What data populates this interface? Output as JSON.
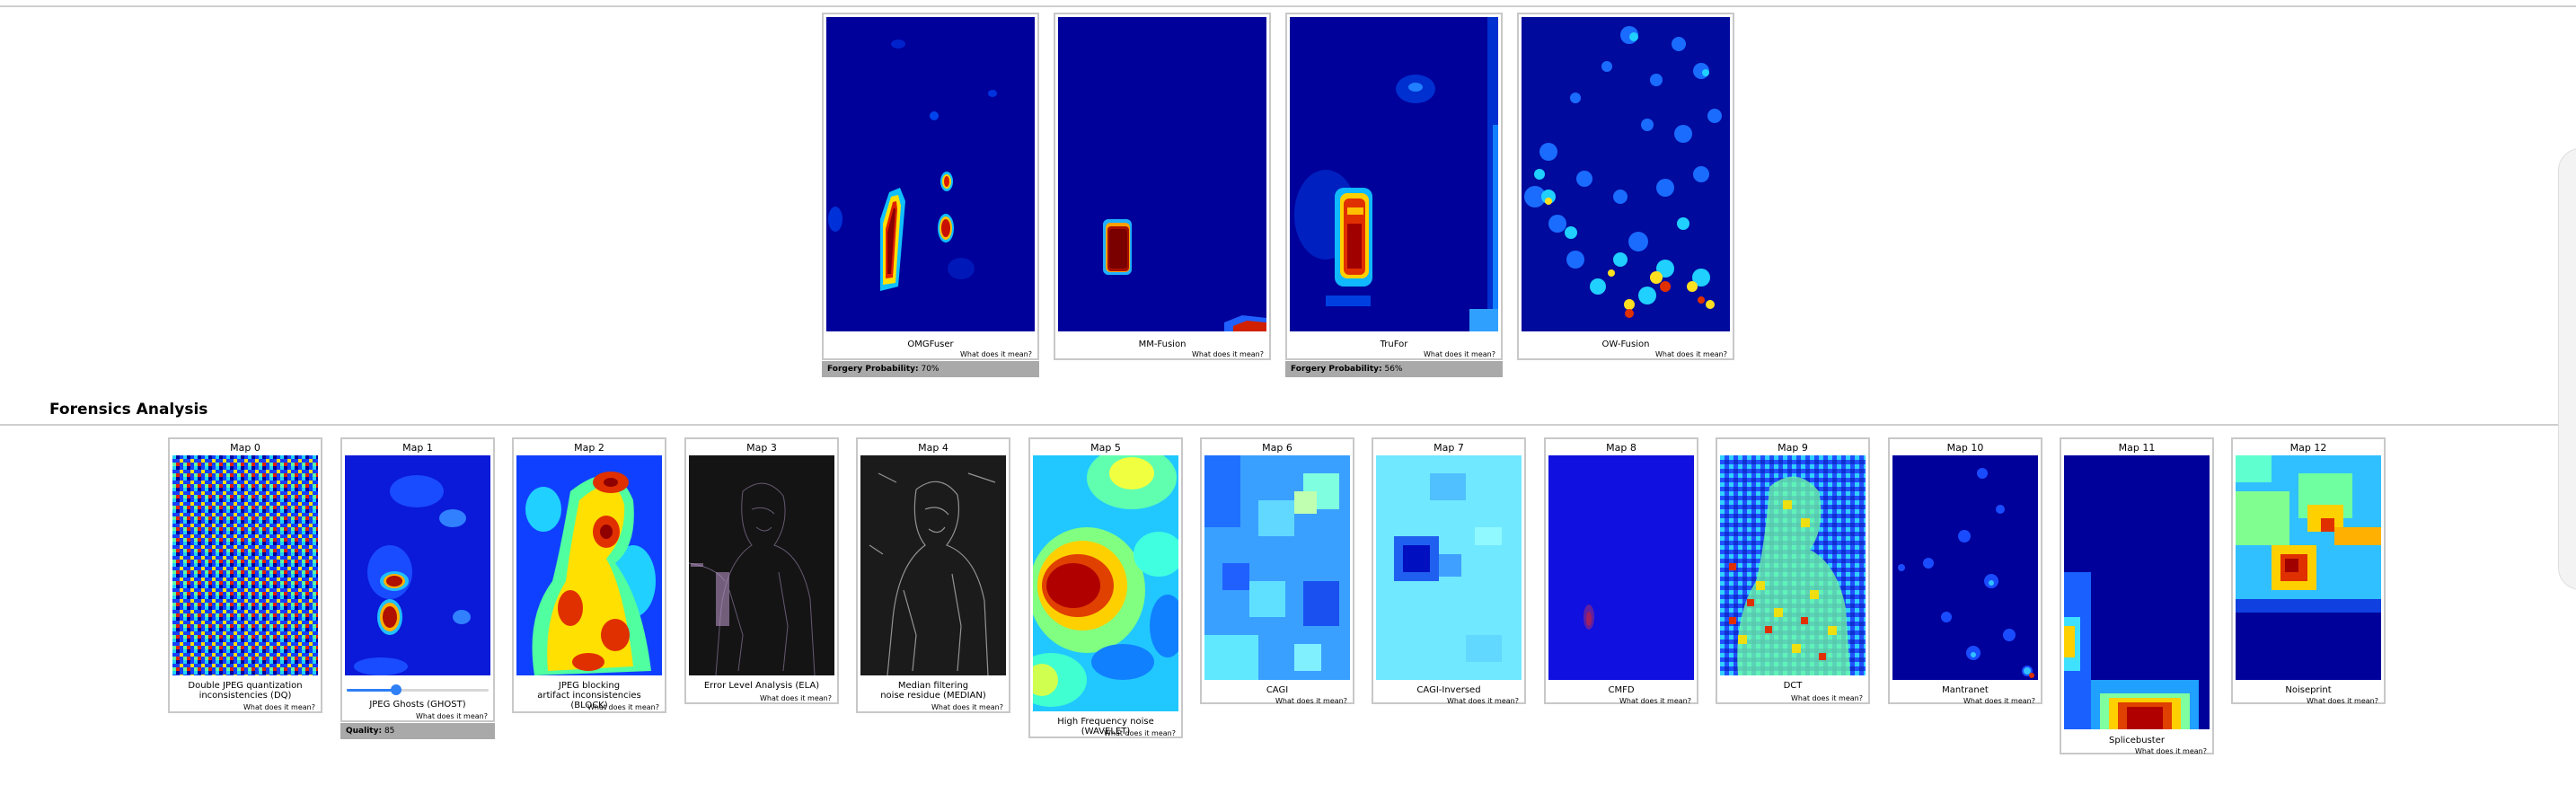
{
  "fusion": [
    {
      "name": "OMGFuser",
      "help": "What does it mean?",
      "badge": {
        "label": "Forgery Probability:",
        "value": "70%"
      }
    },
    {
      "name": "MM-Fusion",
      "help": "What does it mean?"
    },
    {
      "name": "TruFor",
      "help": "What does it mean?",
      "badge": {
        "label": "Forgery Probability:",
        "value": "56%"
      }
    },
    {
      "name": "OW-Fusion",
      "help": "What does it mean?"
    }
  ],
  "section": {
    "title": "Forensics Analysis"
  },
  "maps": [
    {
      "title": "Map 0",
      "label": "Double JPEG quantization\ninconsistencies (DQ)",
      "help": "What does it mean?"
    },
    {
      "title": "Map 1",
      "label": "JPEG Ghosts (GHOST)",
      "help": "What does it mean?",
      "quality": {
        "label": "Quality:",
        "value": "85"
      },
      "slider_fraction": 0.35
    },
    {
      "title": "Map 2",
      "label": "JPEG blocking\nartifact inconsistencies (BLOCK)",
      "help": "What does it mean?"
    },
    {
      "title": "Map 3",
      "label": "Error Level Analysis (ELA)",
      "help": "What does it mean?"
    },
    {
      "title": "Map 4",
      "label": "Median filtering\nnoise residue (MEDIAN)",
      "help": "What does it mean?"
    },
    {
      "title": "Map 5",
      "label": "High Frequency noise (WAVELET)",
      "help": "What does it mean?"
    },
    {
      "title": "Map 6",
      "label": "CAGI",
      "help": "What does it mean?"
    },
    {
      "title": "Map 7",
      "label": "CAGI-Inversed",
      "help": "What does it mean?"
    },
    {
      "title": "Map 8",
      "label": "CMFD",
      "help": "What does it mean?"
    },
    {
      "title": "Map 9",
      "label": "DCT",
      "help": "What does it mean?"
    },
    {
      "title": "Map 10",
      "label": "Mantranet",
      "help": "What does it mean?"
    },
    {
      "title": "Map 11",
      "label": "Splicebuster",
      "help": "What does it mean?"
    },
    {
      "title": "Map 12",
      "label": "Noiseprint",
      "help": "What does it mean?"
    }
  ]
}
